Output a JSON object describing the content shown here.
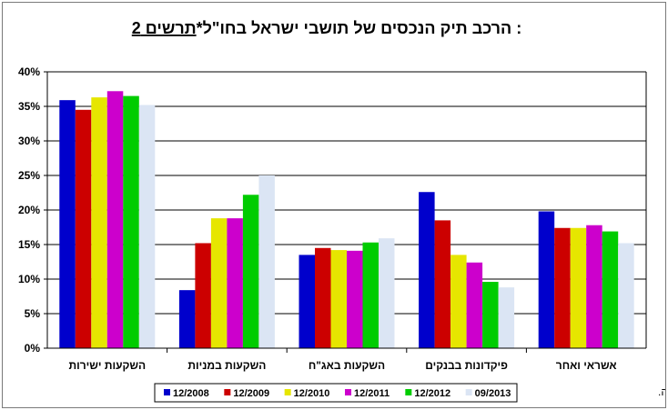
{
  "chart_data": {
    "type": "bar",
    "title_number": "תרשים 2",
    "title_rest": ": הרכב תיק הנכסים של תושבי ישראל בחו\"ל*",
    "footnote": "*לא כולל נכסי רזרבה.",
    "ylim": [
      0,
      40
    ],
    "yticks": [
      "0%",
      "5%",
      "10%",
      "15%",
      "20%",
      "25%",
      "30%",
      "35%",
      "40%"
    ],
    "grid": true,
    "legend_position": "bottom",
    "categories": [
      "השקעות ישירות",
      "השקעות במניות",
      "השקעות באג\"ח",
      "פיקדונות בבנקים",
      "אשראי ואחר"
    ],
    "series": [
      {
        "name": "12/2008",
        "color": "#0000cc",
        "values": [
          35.9,
          8.4,
          13.5,
          22.6,
          19.8
        ]
      },
      {
        "name": "12/2009",
        "color": "#cc0000",
        "values": [
          34.5,
          15.2,
          14.5,
          18.5,
          17.4
        ]
      },
      {
        "name": "12/2010",
        "color": "#e6e600",
        "values": [
          36.3,
          18.8,
          14.2,
          13.5,
          17.4
        ]
      },
      {
        "name": "12/2011",
        "color": "#cc00cc",
        "values": [
          37.2,
          18.8,
          14.1,
          12.4,
          17.8
        ]
      },
      {
        "name": "12/2012",
        "color": "#00cc00",
        "values": [
          36.5,
          22.2,
          15.3,
          9.6,
          16.9
        ]
      },
      {
        "name": "09/2013",
        "color": "#dbe5f4",
        "values": [
          35.2,
          25.0,
          15.9,
          8.8,
          15.2
        ]
      }
    ]
  }
}
